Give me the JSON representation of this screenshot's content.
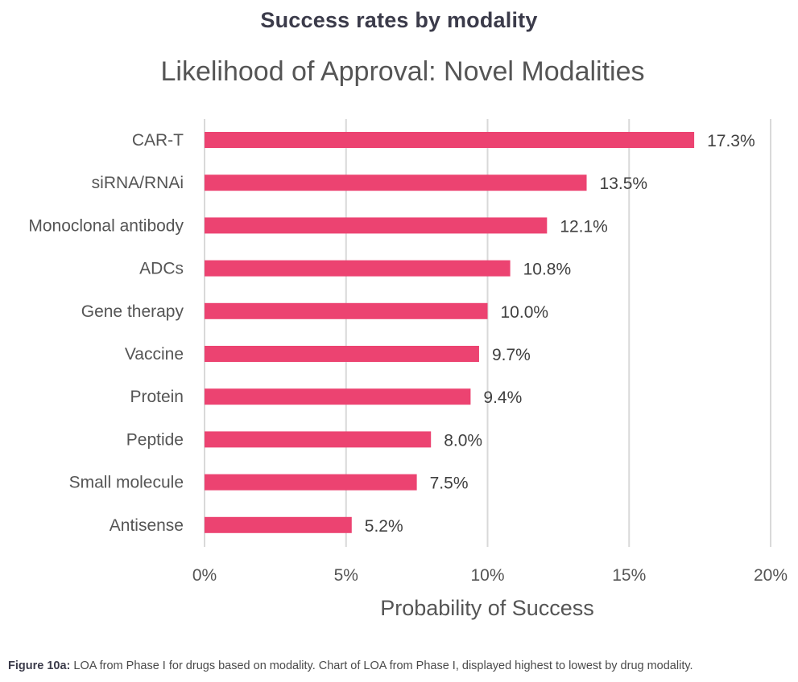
{
  "header": {
    "heading": "Success rates by modality"
  },
  "caption": {
    "label": "Figure 10a:",
    "text": " LOA from Phase I for drugs based on modality. Chart of LOA from Phase I, displayed highest to lowest by drug modality."
  },
  "chart_data": {
    "type": "bar",
    "orientation": "horizontal",
    "title": "Likelihood of Approval: Novel Modalities",
    "xlabel": "Probability of Success",
    "ylabel": "",
    "categories": [
      "CAR-T",
      "siRNA/RNAi",
      "Monoclonal antibody",
      "ADCs",
      "Gene therapy",
      "Vaccine",
      "Protein",
      "Peptide",
      "Small molecule",
      "Antisense"
    ],
    "values": [
      17.3,
      13.5,
      12.1,
      10.8,
      10.0,
      9.7,
      9.4,
      8.0,
      7.5,
      5.2
    ],
    "data_labels": [
      "17.3%",
      "13.5%",
      "12.1%",
      "10.8%",
      "10.0%",
      "9.7%",
      "9.4%",
      "8.0%",
      "7.5%",
      "5.2%"
    ],
    "xlim": [
      0,
      20
    ],
    "xticks": [
      0,
      5,
      10,
      15,
      20
    ],
    "xtick_labels": [
      "0%",
      "5%",
      "10%",
      "15%",
      "20%"
    ],
    "grid": true,
    "legend": "none",
    "bar_color": "#ec4371",
    "grid_color": "#d9d9d9"
  }
}
